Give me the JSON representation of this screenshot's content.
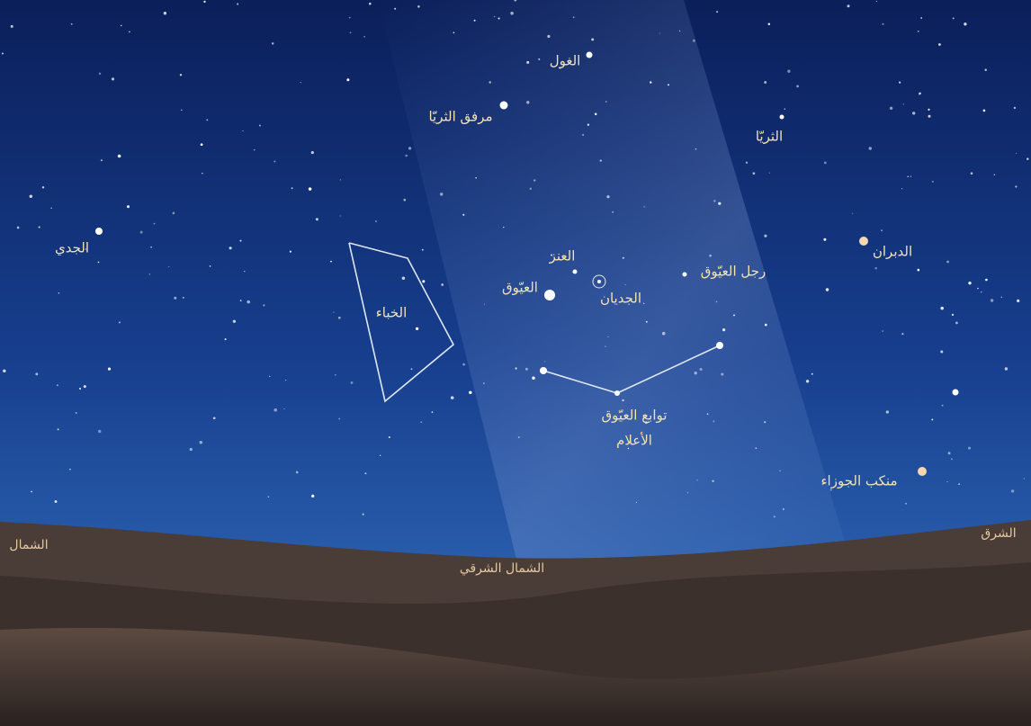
{
  "stars": [
    "الغول",
    "مرفق الثريّا",
    "الثريّا",
    "الجدي",
    "العنز",
    "العيّوق",
    "الجديان",
    "رجل العيّوق",
    "الدبران",
    "منكب الجوزاء"
  ],
  "asterisms": [
    "الخباء",
    "توابع العيّوق",
    "الأعلام"
  ],
  "directions": [
    "الشمال",
    "الشمال الشرقي",
    "الشرق"
  ]
}
